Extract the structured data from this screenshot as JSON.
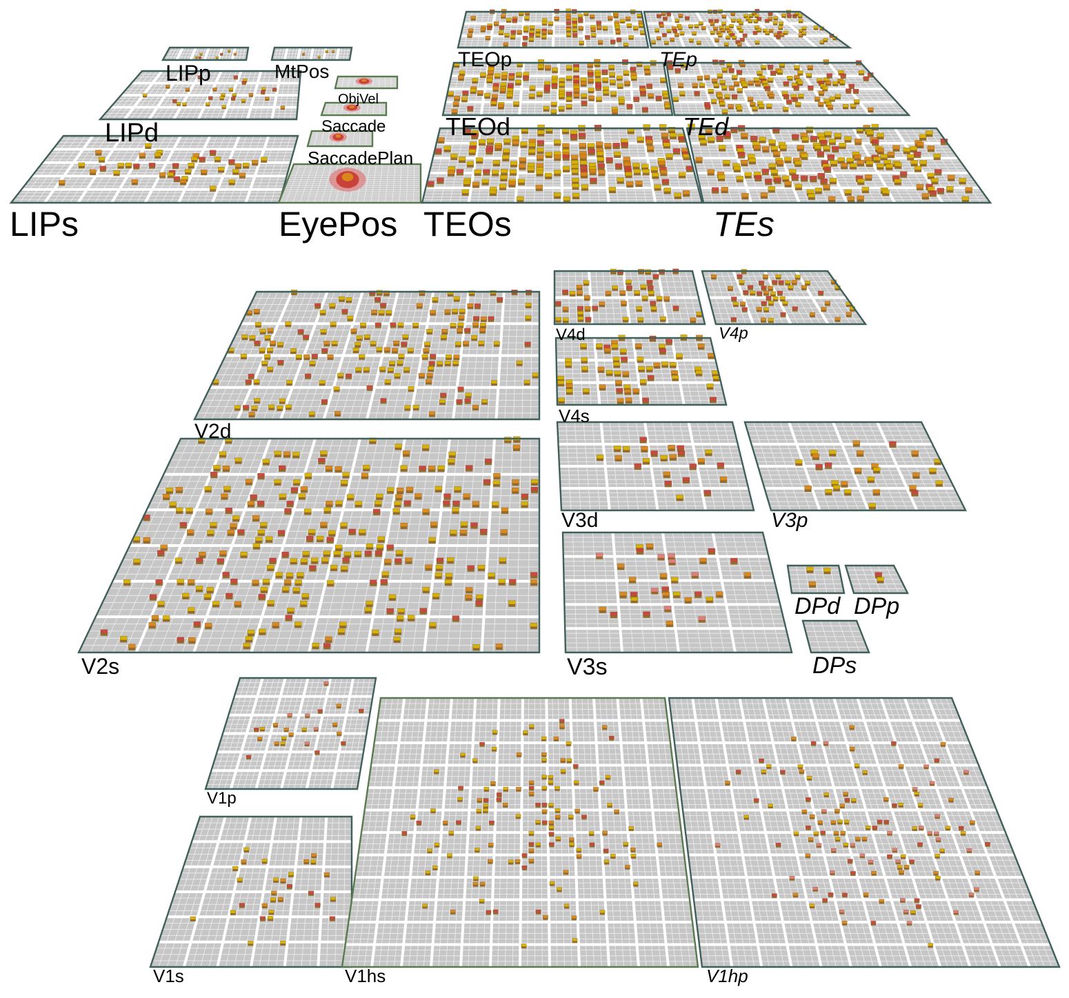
{
  "colors": {
    "background": "#ffffff",
    "layer_fill": "#c6c6c6",
    "unit_grid": "#efefef",
    "pool_gap": "#ffffff",
    "border_dark": "#3f5f5a",
    "border_green": "#587a4e",
    "active_yellow": "#d6b000",
    "active_orange": "#d9861a",
    "active_red": "#c8423a",
    "active_pink": "#e07a7a"
  },
  "layers": [
    {
      "name": "LIPs",
      "italic": false
    },
    {
      "name": "LIPd",
      "italic": false
    },
    {
      "name": "LIPp",
      "italic": false
    },
    {
      "name": "MtPos",
      "italic": false
    },
    {
      "name": "ObjVel",
      "italic": false
    },
    {
      "name": "Saccade",
      "italic": false
    },
    {
      "name": "SaccadePlan",
      "italic": false
    },
    {
      "name": "EyePos",
      "italic": false
    },
    {
      "name": "TEOs",
      "italic": false
    },
    {
      "name": "TEOd",
      "italic": false
    },
    {
      "name": "TEOp",
      "italic": false
    },
    {
      "name": "TEs",
      "italic": true
    },
    {
      "name": "TEd",
      "italic": true
    },
    {
      "name": "TEp",
      "italic": true
    },
    {
      "name": "V2d",
      "italic": false
    },
    {
      "name": "V2s",
      "italic": false
    },
    {
      "name": "V4d",
      "italic": false
    },
    {
      "name": "V4p",
      "italic": true
    },
    {
      "name": "V4s",
      "italic": false
    },
    {
      "name": "V3d",
      "italic": false
    },
    {
      "name": "V3p",
      "italic": true
    },
    {
      "name": "V3s",
      "italic": false
    },
    {
      "name": "DPd",
      "italic": true
    },
    {
      "name": "DPp",
      "italic": true
    },
    {
      "name": "DPs",
      "italic": true
    },
    {
      "name": "V1p",
      "italic": false
    },
    {
      "name": "V1s",
      "italic": false
    },
    {
      "name": "V1hs",
      "italic": false
    },
    {
      "name": "V1hp",
      "italic": true
    }
  ]
}
